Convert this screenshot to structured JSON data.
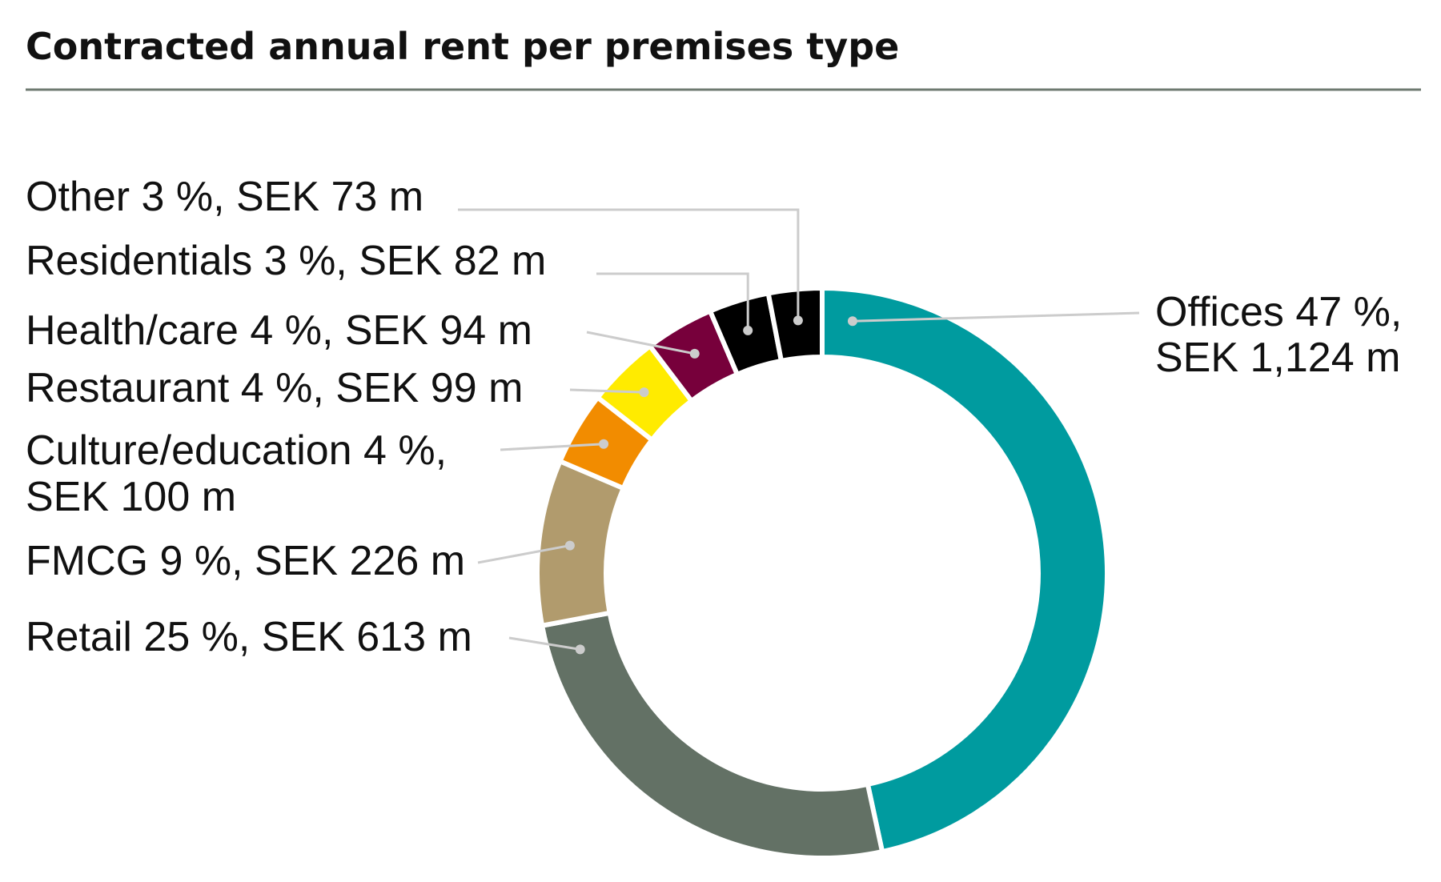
{
  "chart_data": {
    "type": "pie",
    "variant": "donut",
    "title": "Contracted annual rent per premises type",
    "unit": "SEK m",
    "slices": [
      {
        "label": "Offices",
        "percent": 47,
        "value": 1124,
        "text": "Offices 47 %,",
        "text2": "SEK 1,124 m",
        "color": "#009b9f"
      },
      {
        "label": "Retail",
        "percent": 25,
        "value": 613,
        "text": "Retail 25 %, SEK 613 m",
        "color": "#637165"
      },
      {
        "label": "FMCG",
        "percent": 9,
        "value": 226,
        "text": "FMCG 9 %, SEK 226 m",
        "color": "#b19b6d"
      },
      {
        "label": "Culture/education",
        "percent": 4,
        "value": 100,
        "text": "Culture/education 4 %,",
        "text2": "SEK 100 m",
        "color": "#f28c00"
      },
      {
        "label": "Restaurant",
        "percent": 4,
        "value": 99,
        "text": "Restaurant 4 %, SEK 99 m",
        "color": "#ffeb00"
      },
      {
        "label": "Health/care",
        "percent": 4,
        "value": 94,
        "text": "Health/care 4 %, SEK 94 m",
        "color": "#77003b"
      },
      {
        "label": "Residentials",
        "percent": 3,
        "value": 82,
        "text": "Residentials 3 %, SEK 82 m",
        "color": "#000000"
      },
      {
        "label": "Other",
        "percent": 3,
        "value": 73,
        "text": "Other 3 %, SEK 73 m",
        "color": "#000000"
      }
    ],
    "rule_color": "#6e7a70",
    "leader_color": "#cccccc"
  }
}
